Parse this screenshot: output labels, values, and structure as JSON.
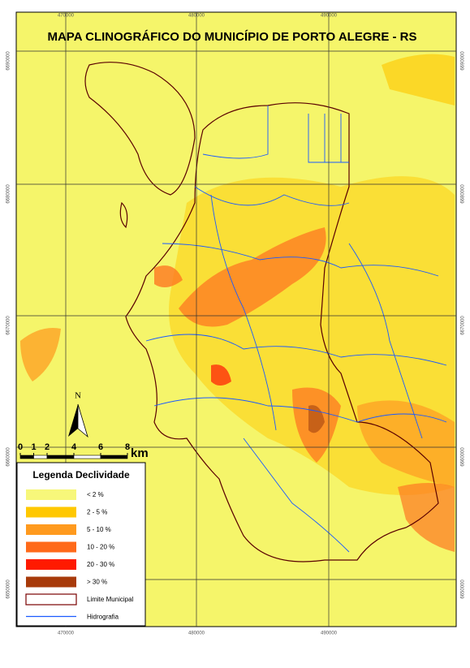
{
  "title": "MAPA CLINOGRÁFICO DO MUNICÍPIO DE PORTO ALEGRE - RS",
  "north": "N",
  "grid": {
    "x_labels": [
      "470000",
      "480000",
      "490000"
    ],
    "y_labels": [
      "6690000",
      "6680000",
      "6670000",
      "6660000",
      "6650000"
    ]
  },
  "scale_bar": {
    "ticks": [
      0,
      1,
      2,
      4,
      6,
      8
    ],
    "unit": "km"
  },
  "legend": {
    "title": "Legenda Declividade",
    "items": [
      {
        "label": "< 2 %",
        "color": "#f7f77a"
      },
      {
        "label": "2 - 5 %",
        "color": "#ffc800"
      },
      {
        "label": "5 - 10 %",
        "color": "#ff9a1e"
      },
      {
        "label": "10 - 20 %",
        "color": "#ff6a1a"
      },
      {
        "label": "20 - 30 %",
        "color": "#ff1a00"
      },
      {
        "label": "> 30 %",
        "color": "#a83a0a"
      },
      {
        "label": "Limite Municipal",
        "color": "#7a0000"
      },
      {
        "label": "Hidrografia",
        "color": "#1a5aff"
      }
    ]
  }
}
